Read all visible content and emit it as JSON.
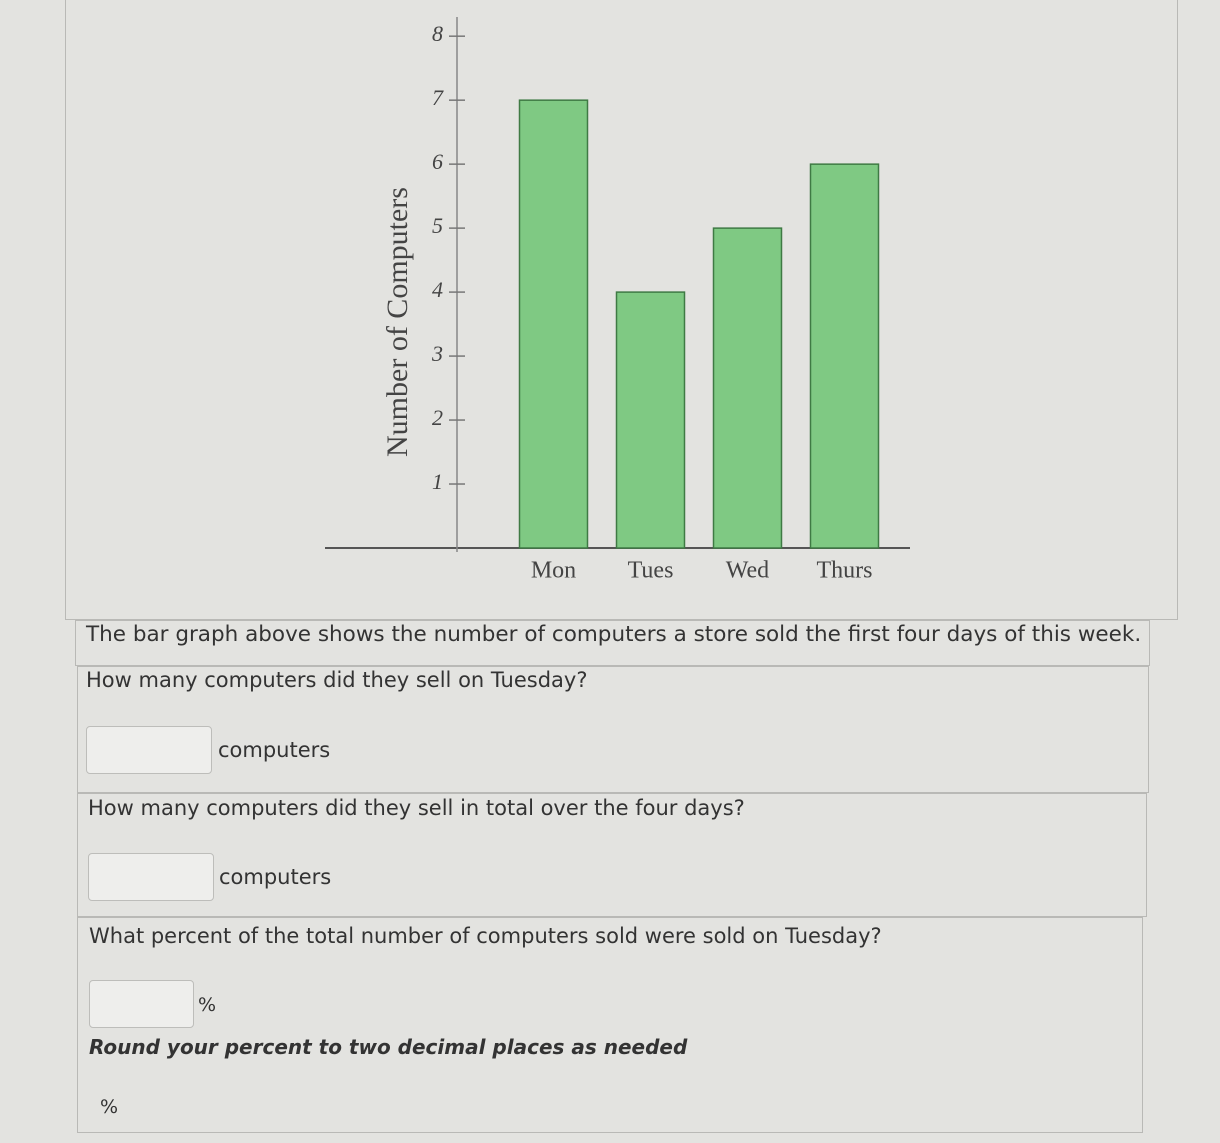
{
  "chart_data": {
    "type": "bar",
    "y_label": "Number of Computers",
    "categories": [
      "Mon",
      "Tues",
      "Wed",
      "Thurs"
    ],
    "values": [
      7,
      4,
      5,
      6
    ],
    "color": "#7fc983",
    "ylim": [
      0,
      8.3
    ],
    "yticks": [
      1,
      2,
      3,
      4,
      5,
      6,
      7,
      8
    ]
  },
  "description": "The bar graph above shows the number of computers a store sold the first four days of this week.",
  "questions": [
    {
      "text": "How many computers did they sell on Tuesday?",
      "unit": "computers"
    },
    {
      "text": "How many computers did they sell in total over the four days?",
      "unit": "computers"
    },
    {
      "text": "What percent of the total number of computers sold were sold on Tuesday?",
      "unit": "%",
      "note": "Round your percent to two decimal places as needed",
      "footer": "%"
    }
  ]
}
